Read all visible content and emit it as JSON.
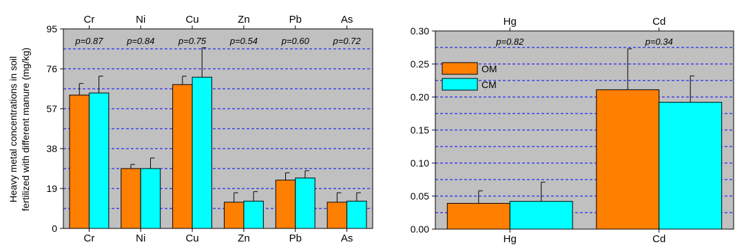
{
  "chart_data": [
    {
      "type": "bar",
      "categories": [
        "Cr",
        "Ni",
        "Cu",
        "Zn",
        "Pb",
        "As"
      ],
      "ylabel": [
        "Heavy metal concentrations in soil",
        "fertilized with different manure (mg/kg)"
      ],
      "ylim": [
        0,
        95
      ],
      "yticks": [
        "0",
        "19",
        "38",
        "57",
        "76",
        "95"
      ],
      "grid": "dashed",
      "p_values": [
        "p=0.87",
        "p=0.84",
        "p=0.75",
        "p=0.54",
        "p=0.60",
        "p=0.72"
      ],
      "series": [
        {
          "name": "OM",
          "color": "#ff7f00",
          "values": [
            63.5,
            28.5,
            68.5,
            12.5,
            23,
            12.5
          ],
          "errors": [
            5.5,
            2,
            4,
            4.5,
            3.5,
            4.5
          ]
        },
        {
          "name": "CM",
          "color": "#00ffff",
          "values": [
            64.5,
            28.5,
            72,
            13,
            24,
            13
          ],
          "errors": [
            8,
            5,
            14,
            4.5,
            3.5,
            4
          ]
        }
      ]
    },
    {
      "type": "bar",
      "categories": [
        "Hg",
        "Cd"
      ],
      "ylim": [
        0,
        0.3
      ],
      "yticks": [
        "0.00",
        "0.05",
        "0.10",
        "0.15",
        "0.20",
        "0.25",
        "0.30"
      ],
      "grid": "dashed",
      "p_values": [
        "p=0.82",
        "p=0.34"
      ],
      "legend": "top-left",
      "series": [
        {
          "name": "OM",
          "color": "#ff7f00",
          "values": [
            0.039,
            0.211
          ],
          "errors": [
            0.019,
            0.062
          ]
        },
        {
          "name": "CM",
          "color": "#00ffff",
          "values": [
            0.042,
            0.192
          ],
          "errors": [
            0.029,
            0.04
          ]
        }
      ]
    }
  ]
}
